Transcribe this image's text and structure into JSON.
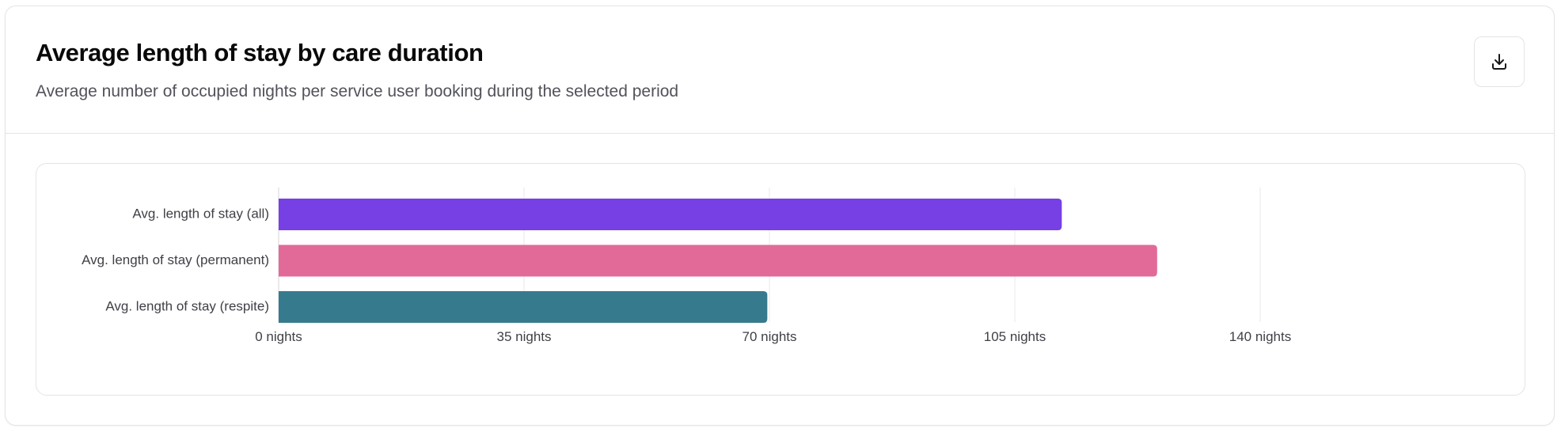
{
  "header": {
    "title": "Average length of stay by care duration",
    "subtitle": "Average number of occupied nights per service user booking during the selected period",
    "download_icon": "download-icon"
  },
  "chart_data": {
    "type": "bar",
    "orientation": "horizontal",
    "categories": [
      "Avg. length of stay (all)",
      "Avg. length of stay (permanent)",
      "Avg. length of stay (respite)"
    ],
    "values": [
      111.7,
      125.3,
      69.7
    ],
    "colors": [
      "#7640e4",
      "#e26a99",
      "#367a8d"
    ],
    "x_ticks": [
      0,
      35,
      70,
      105,
      140
    ],
    "x_tick_labels": [
      "0 nights",
      "35 nights",
      "70 nights",
      "105 nights",
      "140 nights"
    ],
    "xlim": [
      0,
      140
    ],
    "grid": true,
    "legend": "none"
  }
}
